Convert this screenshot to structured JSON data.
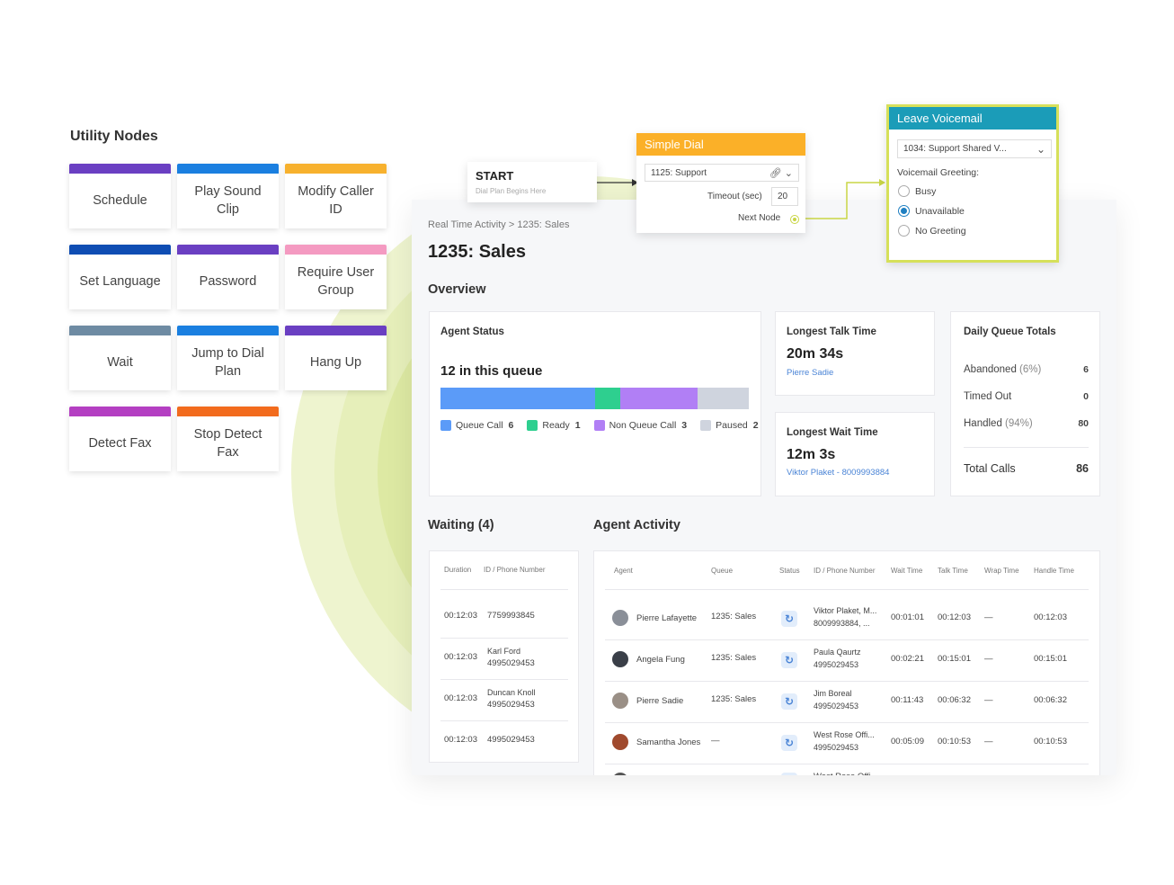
{
  "utility": {
    "title": "Utility Nodes",
    "tiles": [
      {
        "label": "Schedule",
        "color": "#6a3fc2"
      },
      {
        "label": "Play Sound Clip",
        "color": "#1a7fe0"
      },
      {
        "label": "Modify Caller ID",
        "color": "#f7b12e"
      },
      {
        "label": "Set Language",
        "color": "#0f4db3"
      },
      {
        "label": "Password",
        "color": "#6a3fc2"
      },
      {
        "label": "Require User Group",
        "color": "#f49ac1"
      },
      {
        "label": "Wait",
        "color": "#6e8ba3"
      },
      {
        "label": "Jump to Dial Plan",
        "color": "#1a7fe0"
      },
      {
        "label": "Hang Up",
        "color": "#6a3fc2"
      },
      {
        "label": "Detect Fax",
        "color": "#b43fc2"
      },
      {
        "label": "Stop Detect Fax",
        "color": "#f26b1d"
      }
    ]
  },
  "start_node": {
    "title": "START",
    "subtitle": "Dial Plan Begins Here"
  },
  "simple_dial": {
    "title": "Simple Dial",
    "color": "#fbb028",
    "select_value": "1125: Support",
    "timeout_label": "Timeout (sec)",
    "timeout_value": "20",
    "next_node_label": "Next Node"
  },
  "voicemail": {
    "title": "Leave Voicemail",
    "header_color": "#1b9cb8",
    "border_color": "#d6e05a",
    "select_value": "1034: Support Shared V...",
    "greeting_label": "Voicemail Greeting:",
    "options": [
      {
        "label": "Busy",
        "selected": false
      },
      {
        "label": "Unavailable",
        "selected": true
      },
      {
        "label": "No Greeting",
        "selected": false
      }
    ]
  },
  "dashboard": {
    "breadcrumb": "Real Time Activity > 1235: Sales",
    "title": "1235: Sales",
    "overview_label": "Overview",
    "agent_status": {
      "title": "Agent Status",
      "queue_text": "12 in this queue",
      "segments": [
        {
          "label": "Queue Call",
          "value": "6",
          "count": 6,
          "color": "#5b9bf8"
        },
        {
          "label": "Ready",
          "value": "1",
          "count": 1,
          "color": "#2ecf8f"
        },
        {
          "label": "Non Queue Call",
          "value": "3",
          "count": 3,
          "color": "#b17ff5"
        },
        {
          "label": "Paused",
          "value": "2",
          "count": 2,
          "color": "#cfd4de"
        }
      ]
    },
    "longest_talk": {
      "title": "Longest Talk Time",
      "value": "20m 34s",
      "agent": "Pierre Sadie"
    },
    "longest_wait": {
      "title": "Longest Wait Time",
      "value": "12m 3s",
      "caller": "Viktor Plaket - 8009993884"
    },
    "daily_totals": {
      "title": "Daily Queue Totals",
      "rows": [
        {
          "label": "Abandoned",
          "pct": "(6%)",
          "value": "6"
        },
        {
          "label": "Timed Out",
          "pct": "",
          "value": "0"
        },
        {
          "label": "Handled",
          "pct": "(94%)",
          "value": "80"
        }
      ],
      "total_label": "Total Calls",
      "total_value": "86"
    },
    "waiting": {
      "title": "Waiting (4)",
      "headers": [
        "Duration",
        "ID / Phone Number"
      ],
      "rows": [
        {
          "duration": "00:12:03",
          "name": "",
          "phone": "7759993845"
        },
        {
          "duration": "00:12:03",
          "name": "Karl Ford",
          "phone": "4995029453"
        },
        {
          "duration": "00:12:03",
          "name": "Duncan Knoll",
          "phone": "4995029453"
        },
        {
          "duration": "00:12:03",
          "name": "",
          "phone": "4995029453"
        }
      ]
    },
    "agent_activity": {
      "title": "Agent Activity",
      "headers": [
        "Agent",
        "Queue",
        "Status",
        "ID / Phone Number",
        "Wait Time",
        "Talk Time",
        "Wrap Time",
        "Handle Time"
      ],
      "rows": [
        {
          "agent": "Pierre Lafayette",
          "queue": "1235: Sales",
          "id1": "Viktor Plaket, M...",
          "id2": "8009993884, ...",
          "wait": "00:01:01",
          "talk": "00:12:03",
          "wrap": "—",
          "handle": "00:12:03",
          "avatar_color": "#8a8f98"
        },
        {
          "agent": "Angela Fung",
          "queue": "1235: Sales",
          "id1": "Paula Qaurtz",
          "id2": "4995029453",
          "wait": "00:02:21",
          "talk": "00:15:01",
          "wrap": "—",
          "handle": "00:15:01",
          "avatar_color": "#3a3f48"
        },
        {
          "agent": "Pierre Sadie",
          "queue": "1235: Sales",
          "id1": "Jim Boreal",
          "id2": "4995029453",
          "wait": "00:11:43",
          "talk": "00:06:32",
          "wrap": "—",
          "handle": "00:06:32",
          "avatar_color": "#9a8f86"
        },
        {
          "agent": "Samantha Jones",
          "queue": "—",
          "id1": "West Rose Offi...",
          "id2": "4995029453",
          "wait": "00:05:09",
          "talk": "00:10:53",
          "wrap": "—",
          "handle": "00:10:53",
          "avatar_color": "#a04a2e"
        }
      ],
      "partial_row_id": "West Rose Offi..."
    }
  }
}
